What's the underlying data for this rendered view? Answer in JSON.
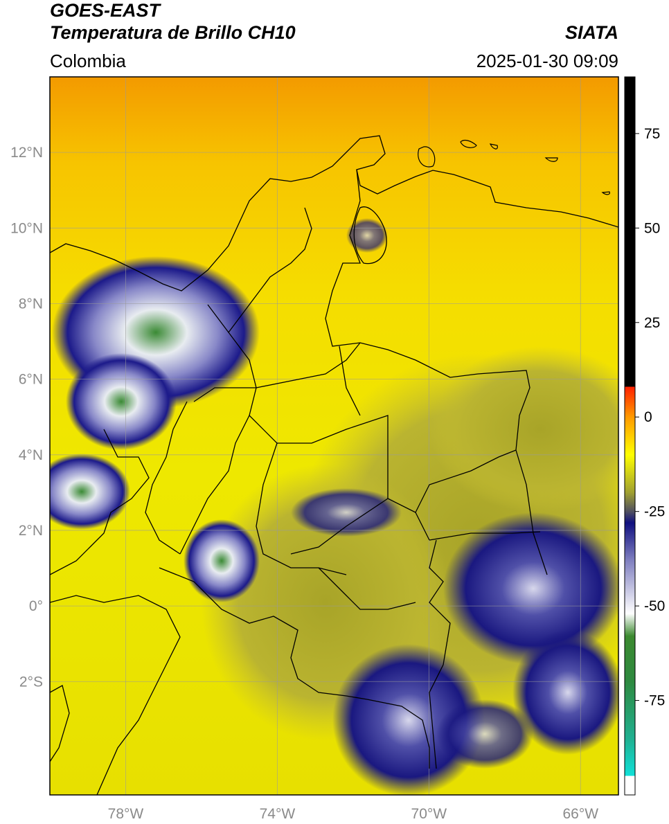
{
  "header": {
    "satellite": "GOES-EAST",
    "product": "Temperatura de Brillo CH10",
    "organization": "SIATA",
    "region": "Colombia",
    "datetime": "2025-01-30 09:09"
  },
  "map": {
    "lon_range": [
      -80,
      -65
    ],
    "lat_range": [
      -5,
      14
    ],
    "longitude_ticks": [
      {
        "value": -78,
        "label": "78°W"
      },
      {
        "value": -74,
        "label": "74°W"
      },
      {
        "value": -70,
        "label": "70°W"
      },
      {
        "value": -66,
        "label": "66°W"
      }
    ],
    "latitude_ticks": [
      {
        "value": 12,
        "label": "12°N"
      },
      {
        "value": 10,
        "label": "10°N"
      },
      {
        "value": 8,
        "label": "8°N"
      },
      {
        "value": 6,
        "label": "6°N"
      },
      {
        "value": 4,
        "label": "4°N"
      },
      {
        "value": 2,
        "label": "2°N"
      },
      {
        "value": 0,
        "label": "0°"
      },
      {
        "value": -2,
        "label": "2°S"
      }
    ],
    "gridlines": true,
    "colors": {
      "background_warm": "#f4c000",
      "background_mid": "#f7e800",
      "cold_cloud": "#1c1a8a",
      "very_cold_cloud": "#e8e8f4",
      "deep_convection": "#3a8a34",
      "border": "#000000",
      "grid": "#9a9a9a"
    }
  },
  "colorbar": {
    "range": [
      -100,
      90
    ],
    "ticks": [
      {
        "value": 75,
        "label": "75"
      },
      {
        "value": 50,
        "label": "50"
      },
      {
        "value": 25,
        "label": "25"
      },
      {
        "value": 0,
        "label": "0"
      },
      {
        "value": -25,
        "label": "-25"
      },
      {
        "value": -50,
        "label": "-50"
      },
      {
        "value": -75,
        "label": "-75"
      }
    ],
    "stops": [
      {
        "value": -100,
        "color": "#ffffff"
      },
      {
        "value": -95,
        "color": "#ffffff"
      },
      {
        "value": -95,
        "color": "#10e0d8"
      },
      {
        "value": -85,
        "color": "#20b090"
      },
      {
        "value": -70,
        "color": "#2e8a40"
      },
      {
        "value": -58,
        "color": "#3c8a30"
      },
      {
        "value": -52,
        "color": "#ffffff"
      },
      {
        "value": -38,
        "color": "#8080c0"
      },
      {
        "value": -28,
        "color": "#101080"
      },
      {
        "value": -25,
        "color": "#505060"
      },
      {
        "value": -20,
        "color": "#a0a030"
      },
      {
        "value": -10,
        "color": "#ffff00"
      },
      {
        "value": 0,
        "color": "#ff9a00"
      },
      {
        "value": 8,
        "color": "#ff2000"
      },
      {
        "value": 8,
        "color": "#000000"
      },
      {
        "value": 90,
        "color": "#000000"
      }
    ]
  }
}
